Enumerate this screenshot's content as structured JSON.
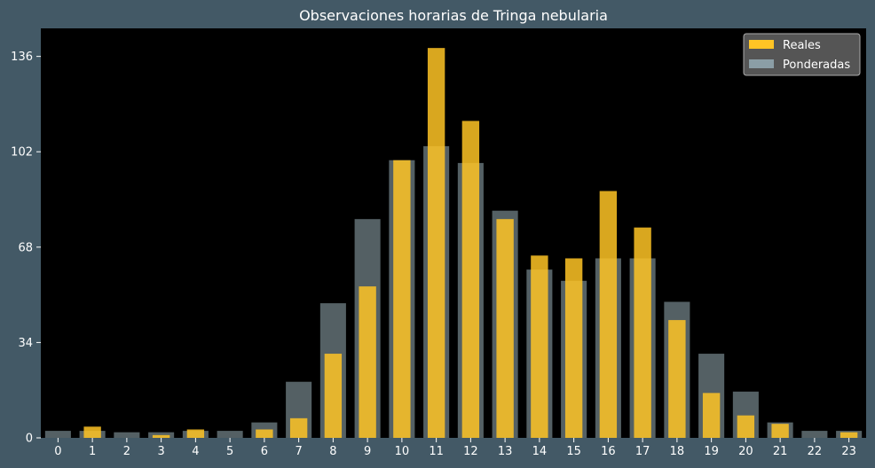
{
  "chart_data": {
    "type": "bar",
    "title": "Observaciones horarias de Tringa nebularia",
    "xlabel": "",
    "ylabel": "",
    "categories": [
      "0",
      "1",
      "2",
      "3",
      "4",
      "5",
      "6",
      "7",
      "8",
      "9",
      "10",
      "11",
      "12",
      "13",
      "14",
      "15",
      "16",
      "17",
      "18",
      "19",
      "20",
      "21",
      "22",
      "23"
    ],
    "series": [
      {
        "name": "Reales",
        "color": "#ffc425",
        "values": [
          0,
          4,
          0,
          1,
          3,
          0,
          3,
          7,
          30,
          54,
          99,
          139,
          113,
          78,
          65,
          64,
          88,
          75,
          42,
          16,
          8,
          5,
          0,
          2
        ]
      },
      {
        "name": "Ponderadas",
        "color": "#a8c0c8",
        "values": [
          2.5,
          2.5,
          2,
          2,
          2.5,
          2.5,
          5.5,
          20,
          48,
          78,
          99,
          104,
          98,
          81,
          60,
          56,
          64,
          64,
          48.5,
          30,
          16.5,
          5.5,
          2.5,
          2.5
        ]
      }
    ],
    "ylim": [
      0,
      146
    ],
    "yticks": [
      0,
      34,
      68,
      102,
      136
    ],
    "grid": false,
    "legend_position": "top-right"
  }
}
